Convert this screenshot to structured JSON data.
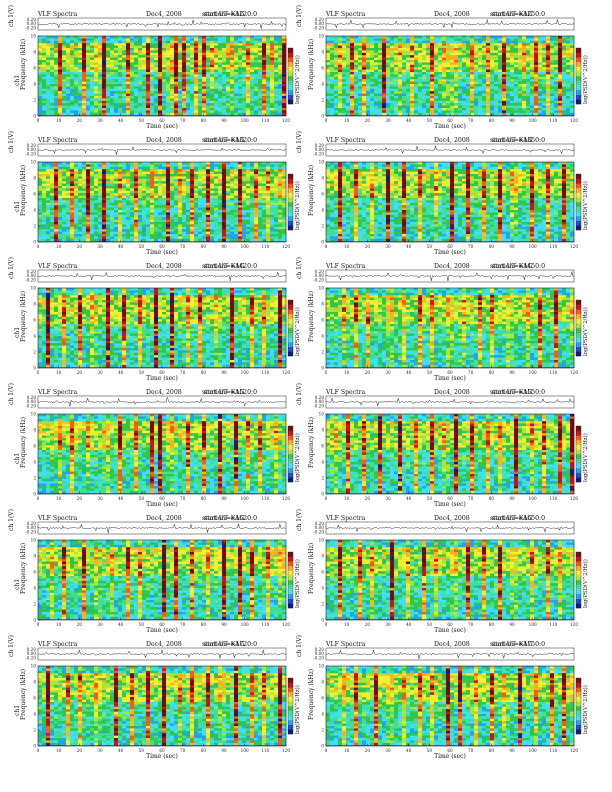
{
  "chart_data": [
    {
      "type": "heatmap",
      "title_left": "VLF Spectra",
      "date": "Dec4, 2008",
      "station": "station=KAG",
      "start": "start  UT =1220:0",
      "ch_label": "ch 1(V)",
      "ytop_ticks": [
        "0.20",
        "0.00",
        "-0.20"
      ],
      "ylabel_ch": "ch1",
      "ylabel": "Frequency  (kHz)",
      "xlabel": "Time  (sec)",
      "x_ticks": [
        "0",
        "10",
        "20",
        "30",
        "40",
        "50",
        "60",
        "70",
        "80",
        "90",
        "100",
        "110",
        "120"
      ],
      "y_ticks": [
        "0",
        "2",
        "4",
        "6",
        "8",
        "10"
      ],
      "colorbar_label": "log(PSD(V^2/Hz))",
      "xlim": [
        0,
        120
      ],
      "ylim": [
        0,
        10
      ],
      "seed": 3,
      "events": [
        10,
        21,
        28,
        31,
        43,
        52,
        58,
        63,
        66,
        70,
        75,
        79,
        84,
        92,
        100,
        108,
        113,
        118
      ]
    },
    {
      "type": "heatmap",
      "title_left": "VLF Spectra",
      "date": "Dec4, 2008",
      "station": "station=KAG",
      "start": "start  UT =1250:0",
      "ch_label": "ch 1(V)",
      "ytop_ticks": [
        "0.20",
        "0.00",
        "-0.20"
      ],
      "ylabel_ch": "",
      "ylabel": "Frequency  (kHz)",
      "xlabel": "Time  (sec)",
      "x_ticks": [
        "0",
        "10",
        "20",
        "30",
        "40",
        "50",
        "60",
        "70",
        "80",
        "90",
        "100",
        "110",
        "120"
      ],
      "y_ticks": [
        "0",
        "2",
        "4",
        "6",
        "8",
        "10"
      ],
      "colorbar_label": "log(PSD(V^2/Hz))",
      "xlim": [
        0,
        120
      ],
      "ylim": [
        0,
        10
      ],
      "seed": 7,
      "events": [
        5,
        12,
        18,
        27,
        34,
        40,
        50,
        57,
        61,
        69,
        78,
        85,
        94,
        101,
        107,
        112
      ]
    },
    {
      "type": "heatmap",
      "title_left": "VLF Spectra",
      "date": "Dec4, 2008",
      "station": "station=KAG",
      "start": "start  UT =1320:0",
      "ch_label": "ch 1(V)",
      "ytop_ticks": [
        "0.20",
        "0.00",
        "-0.20"
      ],
      "ylabel_ch": "ch1",
      "ylabel": "Frequency  (kHz)",
      "xlabel": "Time  (sec)",
      "x_ticks": [
        "0",
        "10",
        "20",
        "30",
        "40",
        "50",
        "60",
        "70",
        "80",
        "90",
        "100",
        "110",
        "120"
      ],
      "y_ticks": [
        "0",
        "2",
        "4",
        "6",
        "8",
        "10"
      ],
      "colorbar_label": "log(PSD(V^2/Hz))",
      "xlim": [
        0,
        120
      ],
      "ylim": [
        0,
        10
      ],
      "seed": 11,
      "events": [
        8,
        15,
        23,
        31,
        38,
        46,
        55,
        62,
        67,
        74,
        81,
        89,
        97,
        104,
        111,
        117
      ]
    },
    {
      "type": "heatmap",
      "title_left": "VLF Spectra",
      "date": "Dec4, 2008",
      "station": "station=KAG",
      "start": "start  UT =1350:0",
      "ch_label": "ch 1(V)",
      "ytop_ticks": [
        "0.20",
        "0.00",
        "-0.20"
      ],
      "ylabel_ch": "",
      "ylabel": "Frequency  (kHz)",
      "xlabel": "Time  (sec)",
      "x_ticks": [
        "0",
        "10",
        "20",
        "30",
        "40",
        "50",
        "60",
        "70",
        "80",
        "90",
        "100",
        "110",
        "120"
      ],
      "y_ticks": [
        "0",
        "2",
        "4",
        "6",
        "8",
        "10"
      ],
      "colorbar_label": "log(PSD(V^2/Hz))",
      "xlim": [
        0,
        120
      ],
      "ylim": [
        0,
        10
      ],
      "seed": 17,
      "events": [
        6,
        14,
        22,
        29,
        37,
        44,
        53,
        60,
        68,
        76,
        83,
        90,
        99,
        106,
        114
      ]
    },
    {
      "type": "heatmap",
      "title_left": "VLF Spectra",
      "date": "Dec4, 2008",
      "station": "station=KAG",
      "start": "start  UT =1420:0",
      "ch_label": "ch 1(V)",
      "ytop_ticks": [
        "0.20",
        "0.00",
        "-0.20"
      ],
      "ylabel_ch": "ch1",
      "ylabel": "Frequency  (kHz)",
      "xlabel": "Time  (sec)",
      "x_ticks": [
        "0",
        "10",
        "20",
        "30",
        "40",
        "50",
        "60",
        "70",
        "80",
        "90",
        "100",
        "110",
        "120"
      ],
      "y_ticks": [
        "0",
        "2",
        "4",
        "6",
        "8",
        "10"
      ],
      "colorbar_label": "log(PSD(V^2/Hz))",
      "xlim": [
        0,
        120
      ],
      "ylim": [
        0,
        10
      ],
      "seed": 23,
      "events": [
        4,
        11,
        19,
        26,
        33,
        41,
        49,
        56,
        64,
        71,
        77,
        86,
        93,
        102,
        109,
        116
      ]
    },
    {
      "type": "heatmap",
      "title_left": "VLF Spectra",
      "date": "Dec4, 2008",
      "station": "station=KAG",
      "start": "start  UT =1450:0",
      "ch_label": "ch 1(V)",
      "ytop_ticks": [
        "0.20",
        "0.00",
        "-0.20"
      ],
      "ylabel_ch": "",
      "ylabel": "Frequency  (kHz)",
      "xlabel": "Time  (sec)",
      "x_ticks": [
        "0",
        "10",
        "20",
        "30",
        "40",
        "50",
        "60",
        "70",
        "80",
        "90",
        "100",
        "110",
        "120"
      ],
      "y_ticks": [
        "0",
        "2",
        "4",
        "6",
        "8",
        "10"
      ],
      "colorbar_label": "log(PSD(V^2/Hz))",
      "xlim": [
        0,
        120
      ],
      "ylim": [
        0,
        10
      ],
      "seed": 29,
      "events": [
        7,
        13,
        20,
        30,
        36,
        45,
        51,
        59,
        65,
        73,
        80,
        88,
        96,
        103,
        110,
        119
      ]
    },
    {
      "type": "heatmap",
      "title_left": "VLF Spectra",
      "date": "Dec4, 2008",
      "station": "station=KAG",
      "start": "start  UT =1520:0",
      "ch_label": "ch 1(V)",
      "ytop_ticks": [
        "0.20",
        "0.00",
        "-0.20"
      ],
      "ylabel_ch": "ch1",
      "ylabel": "Frequency  (kHz)",
      "xlabel": "Time  (sec)",
      "x_ticks": [
        "0",
        "10",
        "20",
        "30",
        "40",
        "50",
        "60",
        "70",
        "80",
        "90",
        "100",
        "110",
        "120"
      ],
      "y_ticks": [
        "0",
        "2",
        "4",
        "6",
        "8",
        "10"
      ],
      "colorbar_label": "log(PSD(V^2/Hz))",
      "xlim": [
        0,
        120
      ],
      "ylim": [
        0,
        10
      ],
      "seed": 31,
      "events": [
        9,
        16,
        24,
        32,
        39,
        47,
        54,
        58,
        63,
        72,
        79,
        87,
        95,
        100,
        107,
        115
      ]
    },
    {
      "type": "heatmap",
      "title_left": "VLF Spectra",
      "date": "Dec4, 2008",
      "station": "station=KAG",
      "start": "start  UT =1550:0",
      "ch_label": "ch 1(V)",
      "ytop_ticks": [
        "0.20",
        "0.00",
        "-0.20"
      ],
      "ylabel_ch": "",
      "ylabel": "Frequency  (kHz)",
      "xlabel": "Time  (sec)",
      "x_ticks": [
        "0",
        "10",
        "20",
        "30",
        "40",
        "50",
        "60",
        "70",
        "80",
        "90",
        "100",
        "110",
        "120"
      ],
      "y_ticks": [
        "0",
        "2",
        "4",
        "6",
        "8",
        "10"
      ],
      "colorbar_label": "log(PSD(V^2/Hz))",
      "xlim": [
        0,
        120
      ],
      "ylim": [
        0,
        10
      ],
      "seed": 37,
      "events": [
        3,
        10,
        17,
        25,
        35,
        42,
        50,
        57,
        62,
        70,
        78,
        84,
        91,
        98,
        105,
        112,
        118
      ]
    },
    {
      "type": "heatmap",
      "title_left": "VLF Spectra",
      "date": "Dec4, 2008",
      "station": "station=KAG",
      "start": "start  UT =1620:0",
      "ch_label": "ch 1(V)",
      "ytop_ticks": [
        "0.20",
        "0.00",
        "-0.20"
      ],
      "ylabel_ch": "ch1",
      "ylabel": "Frequency  (kHz)",
      "xlabel": "Time  (sec)",
      "x_ticks": [
        "0",
        "10",
        "20",
        "30",
        "40",
        "50",
        "60",
        "70",
        "80",
        "90",
        "100",
        "110",
        "120"
      ],
      "y_ticks": [
        "0",
        "2",
        "4",
        "6",
        "8",
        "10"
      ],
      "colorbar_label": "log(PSD(V^2/Hz))",
      "xlim": [
        0,
        120
      ],
      "ylim": [
        0,
        10
      ],
      "seed": 41,
      "events": [
        5,
        12,
        21,
        28,
        34,
        43,
        49,
        60,
        66,
        74,
        82,
        89,
        97,
        103,
        111,
        117
      ]
    },
    {
      "type": "heatmap",
      "title_left": "VLF Spectra",
      "date": "Dec4, 2008",
      "station": "station=KAG",
      "start": "start  UT =1650:0",
      "ch_label": "ch 1(V)",
      "ytop_ticks": [
        "0.20",
        "0.00",
        "-0.20"
      ],
      "ylabel_ch": "",
      "ylabel": "Frequency  (kHz)",
      "xlabel": "Time  (sec)",
      "x_ticks": [
        "0",
        "10",
        "20",
        "30",
        "40",
        "50",
        "60",
        "70",
        "80",
        "90",
        "100",
        "110",
        "120"
      ],
      "y_ticks": [
        "0",
        "2",
        "4",
        "6",
        "8",
        "10"
      ],
      "colorbar_label": "log(PSD(V^2/Hz))",
      "xlim": [
        0,
        120
      ],
      "ylim": [
        0,
        10
      ],
      "seed": 43,
      "events": [
        6,
        15,
        22,
        31,
        38,
        46,
        53,
        61,
        68,
        75,
        83,
        90,
        98,
        106,
        113
      ]
    },
    {
      "type": "heatmap",
      "title_left": "VLF Spectra",
      "date": "Dec4, 2008",
      "station": "station=KAG",
      "start": "start  UT =1720:0",
      "ch_label": "ch 1(V)",
      "ytop_ticks": [
        "0.20",
        "0.00",
        "-0.20"
      ],
      "ylabel_ch": "ch1",
      "ylabel": "Frequency  (kHz)",
      "xlabel": "Time  (sec)",
      "x_ticks": [
        "0",
        "10",
        "20",
        "30",
        "40",
        "50",
        "60",
        "70",
        "80",
        "90",
        "100",
        "110",
        "120"
      ],
      "y_ticks": [
        "0",
        "2",
        "4",
        "6",
        "8",
        "10"
      ],
      "colorbar_label": "log(PSD(V^2/Hz))",
      "xlim": [
        0,
        120
      ],
      "ylim": [
        0,
        10
      ],
      "seed": 47,
      "events": [
        4,
        13,
        20,
        28,
        37,
        44,
        52,
        60,
        67,
        73,
        81,
        88,
        95,
        102,
        109,
        116
      ]
    },
    {
      "type": "heatmap",
      "title_left": "VLF Spectra",
      "date": "Dec4, 2008",
      "station": "station=KAG",
      "start": "start  UT =1750:0",
      "ch_label": "ch 1(V)",
      "ytop_ticks": [
        "0.20",
        "0.00",
        "-0.20"
      ],
      "ylabel_ch": "",
      "ylabel": "Frequency  (kHz)",
      "xlabel": "Time  (sec)",
      "x_ticks": [
        "0",
        "10",
        "20",
        "30",
        "40",
        "50",
        "60",
        "70",
        "80",
        "90",
        "100",
        "110",
        "120"
      ],
      "y_ticks": [
        "0",
        "2",
        "4",
        "6",
        "8",
        "10"
      ],
      "colorbar_label": "log(PSD(V^2/Hz))",
      "xlim": [
        0,
        120
      ],
      "ylim": [
        0,
        10
      ],
      "seed": 53,
      "events": [
        7,
        14,
        23,
        30,
        36,
        45,
        51,
        58,
        64,
        71,
        79,
        86,
        93,
        100,
        108,
        114,
        119
      ]
    }
  ]
}
